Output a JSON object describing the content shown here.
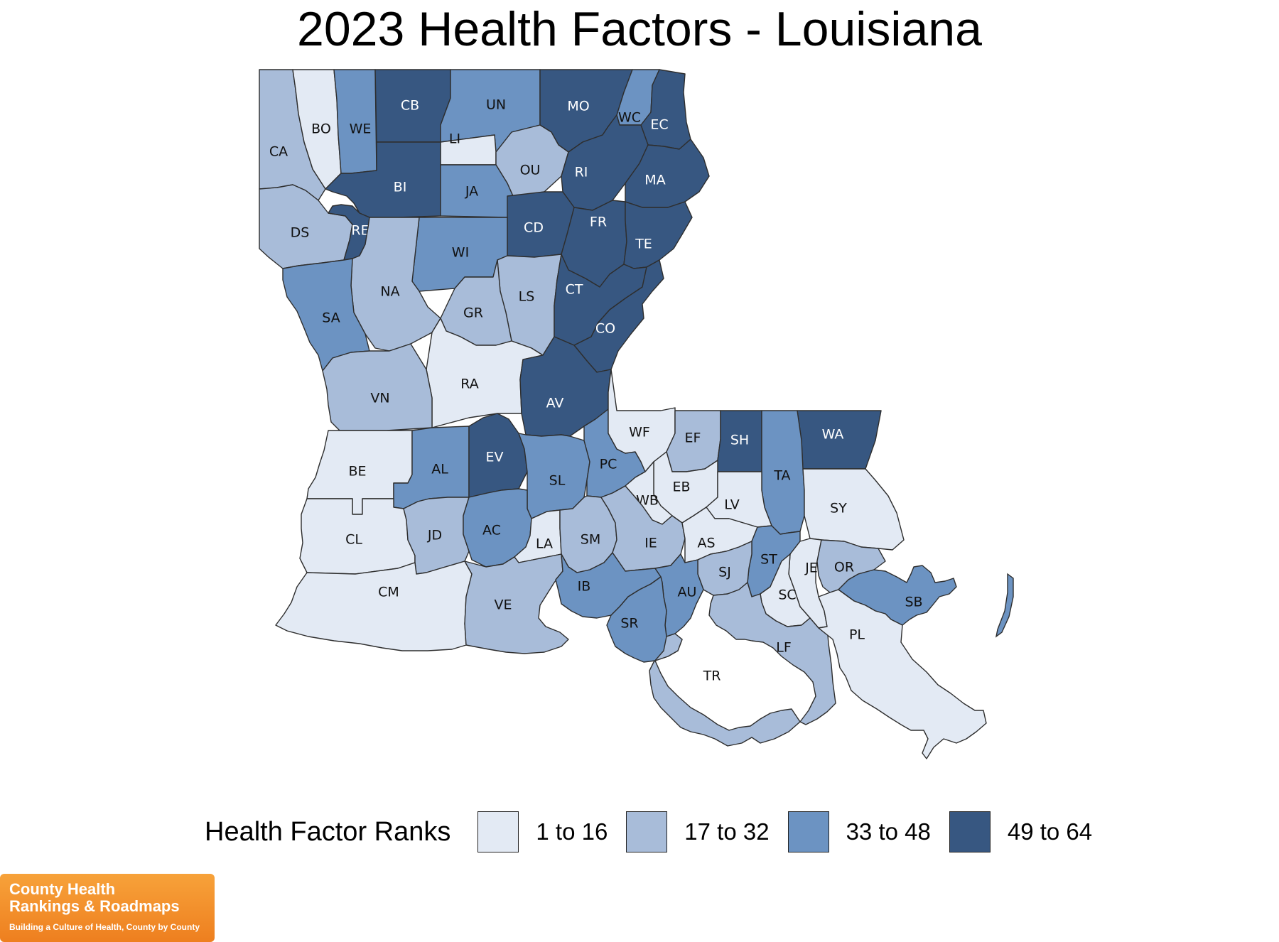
{
  "title": "2023 Health Factors - Louisiana",
  "legend": {
    "title": "Health Factor Ranks",
    "classes": [
      {
        "label": "1 to 16",
        "color": "#e3eaf4"
      },
      {
        "label": "17 to 32",
        "color": "#a8bcd9"
      },
      {
        "label": "33 to 48",
        "color": "#6c93c2"
      },
      {
        "label": "49 to 64",
        "color": "#375781"
      }
    ]
  },
  "parishes": [
    {
      "label": "CA",
      "class": 1
    },
    {
      "label": "BO",
      "class": 0
    },
    {
      "label": "WE",
      "class": 2
    },
    {
      "label": "CB",
      "class": 3
    },
    {
      "label": "UN",
      "class": 2
    },
    {
      "label": "MO",
      "class": 3
    },
    {
      "label": "WC",
      "class": 2
    },
    {
      "label": "EC",
      "class": 3
    },
    {
      "label": "LI",
      "class": 0
    },
    {
      "label": "OU",
      "class": 1
    },
    {
      "label": "RI",
      "class": 3
    },
    {
      "label": "MA",
      "class": 3
    },
    {
      "label": "BI",
      "class": 3
    },
    {
      "label": "JA",
      "class": 2
    },
    {
      "label": "DS",
      "class": 1
    },
    {
      "label": "RE",
      "class": 3
    },
    {
      "label": "CD",
      "class": 3
    },
    {
      "label": "FR",
      "class": 3
    },
    {
      "label": "TE",
      "class": 3
    },
    {
      "label": "WI",
      "class": 2
    },
    {
      "label": "NA",
      "class": 1
    },
    {
      "label": "LS",
      "class": 1
    },
    {
      "label": "CT",
      "class": 3
    },
    {
      "label": "SA",
      "class": 2
    },
    {
      "label": "GR",
      "class": 1
    },
    {
      "label": "CO",
      "class": 3
    },
    {
      "label": "RA",
      "class": 0
    },
    {
      "label": "VN",
      "class": 1
    },
    {
      "label": "AV",
      "class": 3
    },
    {
      "label": "BE",
      "class": 0
    },
    {
      "label": "AL",
      "class": 2
    },
    {
      "label": "EV",
      "class": 3
    },
    {
      "label": "SL",
      "class": 2
    },
    {
      "label": "PC",
      "class": 2
    },
    {
      "label": "WF",
      "class": 0
    },
    {
      "label": "EF",
      "class": 1
    },
    {
      "label": "SH",
      "class": 3
    },
    {
      "label": "WA",
      "class": 3
    },
    {
      "label": "TA",
      "class": 2
    },
    {
      "label": "SY",
      "class": 0
    },
    {
      "label": "EB",
      "class": 0
    },
    {
      "label": "WB",
      "class": 0
    },
    {
      "label": "LV",
      "class": 0
    },
    {
      "label": "CL",
      "class": 0
    },
    {
      "label": "JD",
      "class": 1
    },
    {
      "label": "AC",
      "class": 2
    },
    {
      "label": "LA",
      "class": 0
    },
    {
      "label": "SM",
      "class": 1
    },
    {
      "label": "IE",
      "class": 1
    },
    {
      "label": "AS",
      "class": 0
    },
    {
      "label": "ST",
      "class": 2
    },
    {
      "label": "JE",
      "class": 0
    },
    {
      "label": "OR",
      "class": 1
    },
    {
      "label": "SJ",
      "class": 1
    },
    {
      "label": "CM",
      "class": 0
    },
    {
      "label": "VE",
      "class": 1
    },
    {
      "label": "IB",
      "class": 2
    },
    {
      "label": "AU",
      "class": 2
    },
    {
      "label": "SC",
      "class": 0
    },
    {
      "label": "SB",
      "class": 2
    },
    {
      "label": "SR",
      "class": 2
    },
    {
      "label": "LF",
      "class": 1
    },
    {
      "label": "PL",
      "class": 0
    },
    {
      "label": "TR",
      "class": 1
    }
  ],
  "logo": {
    "line1": "County Health",
    "line2": "Rankings & Roadmaps",
    "tagline": "Building a Culture of Health, County by County"
  }
}
